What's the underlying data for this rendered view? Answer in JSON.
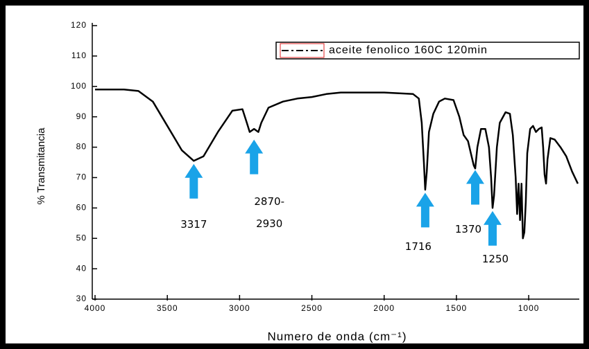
{
  "chart_data": {
    "type": "line",
    "xlabel": "Numero de onda (cm⁻¹)",
    "ylabel": "% Transmitancia",
    "xlim": [
      4000,
      650
    ],
    "ylim": [
      30,
      120
    ],
    "xticks": [
      4000,
      3500,
      3000,
      2500,
      2000,
      1500,
      1000
    ],
    "yticks": [
      30,
      40,
      50,
      60,
      70,
      80,
      90,
      100,
      110,
      120
    ],
    "legend": "top-right",
    "x": [
      4000,
      3800,
      3700,
      3600,
      3500,
      3400,
      3317,
      3250,
      3150,
      3050,
      2980,
      2950,
      2930,
      2900,
      2870,
      2850,
      2800,
      2700,
      2600,
      2500,
      2400,
      2300,
      2000,
      1800,
      1760,
      1740,
      1725,
      1716,
      1705,
      1690,
      1660,
      1620,
      1580,
      1520,
      1480,
      1450,
      1420,
      1400,
      1380,
      1370,
      1355,
      1330,
      1300,
      1275,
      1260,
      1250,
      1240,
      1220,
      1200,
      1160,
      1130,
      1110,
      1090,
      1080,
      1070,
      1060,
      1050,
      1040,
      1030,
      1020,
      1010,
      990,
      970,
      950,
      930,
      910,
      900,
      890,
      880,
      870,
      850,
      820,
      780,
      740,
      700,
      660
    ],
    "series": [
      {
        "name": "aceite fenolico 160C  120min",
        "color": "#000000",
        "values": [
          99,
          99,
          98.5,
          95,
          87,
          79,
          75.5,
          77,
          85,
          92,
          92.5,
          88,
          85,
          86,
          85,
          88,
          93,
          95,
          96,
          96.5,
          97.5,
          98,
          98,
          97.5,
          96,
          88,
          75,
          66,
          72,
          85,
          91,
          95,
          96,
          95.5,
          90,
          84,
          82,
          78,
          74,
          73,
          80,
          86,
          86,
          80,
          70,
          60,
          64,
          80,
          88,
          91.5,
          91,
          84,
          70,
          58,
          68,
          56,
          68,
          50,
          52,
          62,
          78,
          86,
          87,
          85,
          86,
          86.5,
          80,
          71,
          68,
          76,
          83,
          82.5,
          80,
          77,
          72,
          68
        ]
      }
    ],
    "annotations": [
      {
        "text": [
          "3317"
        ],
        "x": 3317,
        "y": 74.5,
        "color": "#1aa3e8"
      },
      {
        "text": [
          "2870-",
          "2930"
        ],
        "x": 2900,
        "y": 82.5,
        "color": "#1aa3e8"
      },
      {
        "text": [
          "1716"
        ],
        "x": 1716,
        "y": 65,
        "color": "#1aa3e8"
      },
      {
        "text": [
          "1370"
        ],
        "x": 1370,
        "y": 72.5,
        "color": "#1aa3e8"
      },
      {
        "text": [
          "1250"
        ],
        "x": 1250,
        "y": 59,
        "color": "#1aa3e8"
      }
    ]
  }
}
